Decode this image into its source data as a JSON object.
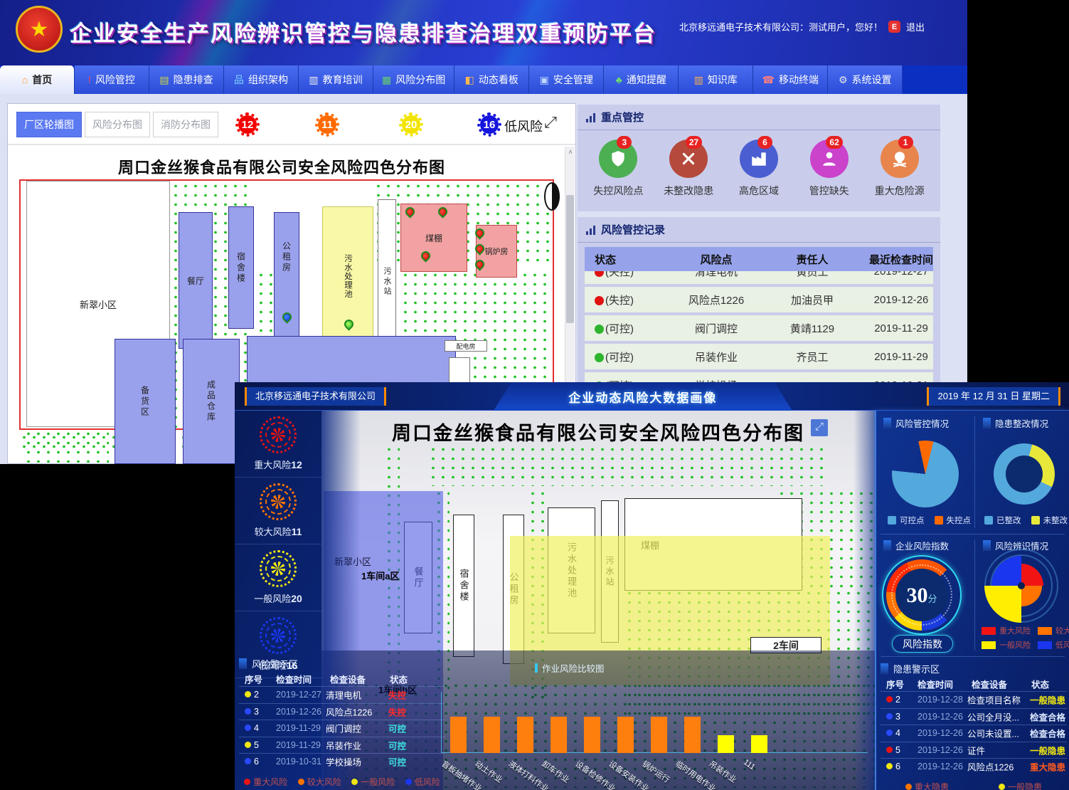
{
  "main_window": {
    "header": {
      "title": "企业安全生产风险辨识管控与隐患排查治理双重预防平台",
      "user_info": "北京移远通电子技术有限公司：测试用户，您好！",
      "logout_label": "退出"
    },
    "nav": {
      "items": [
        {
          "label": "首页",
          "icon": "home-icon",
          "active": true
        },
        {
          "label": "风险管控",
          "icon": "risk-alert-icon"
        },
        {
          "label": "隐患排查",
          "icon": "hazard-check-icon"
        },
        {
          "label": "组织架构",
          "icon": "org-structure-icon"
        },
        {
          "label": "教育培训",
          "icon": "training-icon"
        },
        {
          "label": "风险分布图",
          "icon": "risk-map-icon"
        },
        {
          "label": "动态看板",
          "icon": "dashboard-icon"
        },
        {
          "label": "安全管理",
          "icon": "safety-monitor-icon"
        },
        {
          "label": "通知提醒",
          "icon": "notify-icon"
        },
        {
          "label": "知识库",
          "icon": "knowledge-icon"
        },
        {
          "label": "移动终端",
          "icon": "mobile-icon"
        },
        {
          "label": "系统设置",
          "icon": "settings-icon"
        }
      ]
    },
    "map_panel": {
      "buttons": [
        {
          "label": "厂区轮播图",
          "active": true
        },
        {
          "label": "风险分布图",
          "active": false
        },
        {
          "label": "消防分布图",
          "active": false
        }
      ],
      "badges": [
        {
          "value": "12",
          "color": "#f20000",
          "label": ""
        },
        {
          "value": "11",
          "color": "#ff6a00",
          "label": ""
        },
        {
          "value": "20",
          "color": "#f2e400",
          "label": ""
        },
        {
          "value": "16",
          "color": "#1515dd",
          "label": "低风险"
        }
      ],
      "map_title": "周口金丝猴食品有限公司安全风险四色分布图",
      "buildings": {
        "xincui": "新翠小区",
        "canting": "餐厅",
        "sushelou": "宿舍楼",
        "gongzufang": "公租房",
        "wushuichi": "污水处理池",
        "wushuizhan": "污水站",
        "meipeng": "煤棚",
        "guolufang": "锅炉房",
        "beihuoqu": "备货区",
        "chengpin": "成品仓库",
        "peidianfang": "配电房"
      }
    },
    "key_control": {
      "title": "重点管控",
      "items": [
        {
          "label": "失控风险点",
          "count": "3",
          "color": "#4caf52",
          "icon": "shield-icon"
        },
        {
          "label": "未整改隐患",
          "count": "27",
          "color": "#b5493b",
          "icon": "tools-icon"
        },
        {
          "label": "高危区域",
          "count": "6",
          "color": "#4a5ed2",
          "icon": "factory-icon"
        },
        {
          "label": "管控缺失",
          "count": "62",
          "color": "#cb42cb",
          "icon": "person-icon"
        },
        {
          "label": "重大危险源",
          "count": "1",
          "color": "#e8854d",
          "icon": "skull-icon"
        }
      ]
    },
    "risk_records": {
      "title": "风险管控记录",
      "headers": [
        "状态",
        "风险点",
        "责任人",
        "最近检查时间"
      ],
      "rows": [
        {
          "status": "(失控)",
          "dot": "#e01212",
          "point": "清理电机",
          "person": "黄员工",
          "date": "2019-12-27"
        },
        {
          "status": "(失控)",
          "dot": "#e01212",
          "point": "风险点1226",
          "person": "加油员甲",
          "date": "2019-12-26"
        },
        {
          "status": "(可控)",
          "dot": "#2db52d",
          "point": "阀门调控",
          "person": "黄靖1129",
          "date": "2019-11-29"
        },
        {
          "status": "(可控)",
          "dot": "#2db52d",
          "point": "吊装作业",
          "person": "齐员工",
          "date": "2019-11-29"
        },
        {
          "status": "(可控)",
          "dot": "#2db52d",
          "point": "学校操场",
          "person": "",
          "date": "2019-10-31"
        }
      ]
    }
  },
  "dashboard": {
    "header": {
      "company": "北京移远通电子技术有限公司",
      "title": "企业动态风险大数据画像",
      "date": "2019 年 12 月 31 日 星期二"
    },
    "risk_levels": [
      {
        "label": "重大风险",
        "value": "12",
        "color": "#e81414"
      },
      {
        "label": "较大风险",
        "value": "11",
        "color": "#ff7300"
      },
      {
        "label": "一般风险",
        "value": "20",
        "color": "#f0e612"
      },
      {
        "label": "低风险",
        "value": "16",
        "color": "#1a36ee"
      }
    ],
    "map": {
      "title": "周口金丝猴食品有限公司安全风险四色分布图",
      "zones": {
        "zone_a": "1车间a区",
        "zone_b": "1车间b区",
        "zone_2": "2车间"
      },
      "buildings": {
        "xincui": "新翠小区",
        "canting": "餐厅",
        "sushelou": "宿舍楼",
        "gongzufang": "公租房",
        "wushuichi": "污水处理池",
        "wushuizhan": "污水站",
        "meipeng": "煤棚"
      }
    },
    "risk_warning": {
      "title": "风险警示区",
      "headers": [
        "序号",
        "检查时间",
        "检查设备",
        "状态"
      ],
      "rows": [
        {
          "no": "2",
          "dot": "#f0e612",
          "date": "2019-12-27",
          "device": "清理电机",
          "status": "失控",
          "status_color": "#ff2a2a"
        },
        {
          "no": "3",
          "dot": "#2a48ff",
          "date": "2019-12-26",
          "device": "风险点1226",
          "status": "失控",
          "status_color": "#ff2a2a"
        },
        {
          "no": "4",
          "dot": "#2a48ff",
          "date": "2019-11-29",
          "device": "阀门调控",
          "status": "可控",
          "status_color": "#3ee0e0"
        },
        {
          "no": "5",
          "dot": "#f0e612",
          "date": "2019-11-29",
          "device": "吊装作业",
          "status": "可控",
          "status_color": "#3ee0e0"
        },
        {
          "no": "6",
          "dot": "#2a48ff",
          "date": "2019-10-31",
          "device": "学校操场",
          "status": "可控",
          "status_color": "#3ee0e0"
        }
      ],
      "legend": [
        {
          "label": "重大风险",
          "color": "#e81414"
        },
        {
          "label": "较大风险",
          "color": "#ff7300"
        },
        {
          "label": "一般风险",
          "color": "#f0e612"
        },
        {
          "label": "低风险",
          "color": "#1a36ee"
        }
      ]
    },
    "hazard_warning": {
      "title": "隐患警示区",
      "headers": [
        "序号",
        "检查时间",
        "检查设备",
        "状态"
      ],
      "rows": [
        {
          "no": "2",
          "dot": "#e81414",
          "date": "2019-12-28",
          "device": "检查项目名称",
          "status": "一般隐患",
          "status_color": "#f0e612"
        },
        {
          "no": "3",
          "dot": "#2a48ff",
          "date": "2019-12-26",
          "device": "公司全月没...",
          "status": "检查合格",
          "status_color": "#dce8ff"
        },
        {
          "no": "4",
          "dot": "#2a48ff",
          "date": "2019-12-26",
          "device": "公司未设置...",
          "status": "检查合格",
          "status_color": "#dce8ff"
        },
        {
          "no": "5",
          "dot": "#e81414",
          "date": "2019-12-26",
          "device": "证件",
          "status": "一般隐患",
          "status_color": "#f0e612"
        },
        {
          "no": "6",
          "dot": "#f0e612",
          "date": "2019-12-26",
          "device": "风险点1226",
          "status": "重大隐患",
          "status_color": "#ff5a1e"
        }
      ],
      "legend": [
        {
          "label": "重大隐患",
          "color": "#ff7300"
        },
        {
          "label": "一般隐患",
          "color": "#f0e612"
        }
      ]
    },
    "panels": {
      "risk_control": {
        "title": "风险管控情况"
      },
      "hazard_fix": {
        "title": "隐患整改情况"
      },
      "risk_index": {
        "title": "企业风险指数",
        "value": "30",
        "unit": "分",
        "button": "风险指数"
      },
      "risk_identify": {
        "title": "风险辨识情况"
      }
    }
  },
  "chart_data": [
    {
      "name": "作业风险比较图",
      "type": "bar",
      "title": "作业风险比较图",
      "categories": [
        "盲板抽堵作业",
        "动土作业",
        "液体打料作业",
        "卸车作业",
        "设备检修作业",
        "设备安装作业",
        "锅炉运行",
        "临时用电作业",
        "吊装作业",
        "111"
      ],
      "values": [
        2,
        2,
        2,
        2,
        2,
        2,
        2,
        2,
        1,
        1
      ],
      "bar_colors": [
        "#ff7f0e",
        "#ff7f0e",
        "#ff7f0e",
        "#ff7f0e",
        "#ff7f0e",
        "#ff7f0e",
        "#ff7f0e",
        "#ff7f0e",
        "#ffff00",
        "#ffff00"
      ],
      "xlabel": "",
      "ylabel": "",
      "grid": false,
      "legend_position": "none"
    },
    {
      "name": "风险管控情况",
      "type": "pie",
      "title": "风险管控情况",
      "slices": [
        {
          "label": "可控点",
          "deg": 262,
          "color": "#53a8dc"
        },
        {
          "label": "失控点",
          "deg": 26,
          "color": "#ff6a00"
        }
      ],
      "gap_deg": 72,
      "start_deg": -12,
      "legend": [
        {
          "label": "可控点",
          "color": "#53a8dc"
        },
        {
          "label": "失控点",
          "color": "#ff6a00"
        }
      ]
    },
    {
      "name": "隐患整改情况",
      "type": "pie",
      "subtype": "donut",
      "title": "隐患整改情况",
      "slices": [
        {
          "label": "未整改",
          "deg": 100,
          "color": "#e8e83a"
        },
        {
          "label": "已整改",
          "deg": 260,
          "color": "#53a8dc"
        }
      ],
      "start_deg": 15,
      "legend": [
        {
          "label": "已整改",
          "color": "#53a8dc"
        },
        {
          "label": "未整改",
          "color": "#e8e83a"
        }
      ]
    },
    {
      "name": "企业风险指数",
      "type": "gauge",
      "title": "企业风险指数",
      "value": 30,
      "unit": "分",
      "segments": [
        {
          "color": "#1a3bdd",
          "deg": 45
        },
        {
          "color": "#ffd600",
          "deg": 50
        },
        {
          "color": "#ff7300",
          "deg": 45
        },
        {
          "color": "#ff2a00",
          "deg": 60
        },
        {
          "color": "#ff5500",
          "deg": 70
        }
      ],
      "sweep_deg": 270
    },
    {
      "name": "风险辨识情况",
      "type": "rose",
      "title": "风险辨识情况",
      "quadrants": [
        {
          "label": "低风险",
          "value": 16,
          "color": "#1a36ee",
          "position": "top-left"
        },
        {
          "label": "重大风险",
          "value": 12,
          "color": "#f21414",
          "position": "top-right"
        },
        {
          "label": "较大风险",
          "value": 11,
          "color": "#ff7300",
          "position": "bottom-right"
        },
        {
          "label": "一般风险",
          "value": 20,
          "color": "#ffee00",
          "position": "bottom-left"
        }
      ],
      "legend": [
        {
          "label": "重大风险",
          "color": "#f21414"
        },
        {
          "label": "较大风险",
          "color": "#ff7300"
        },
        {
          "label": "一般风险",
          "color": "#ffee00"
        },
        {
          "label": "低风险",
          "color": "#1a36ee"
        }
      ]
    }
  ]
}
